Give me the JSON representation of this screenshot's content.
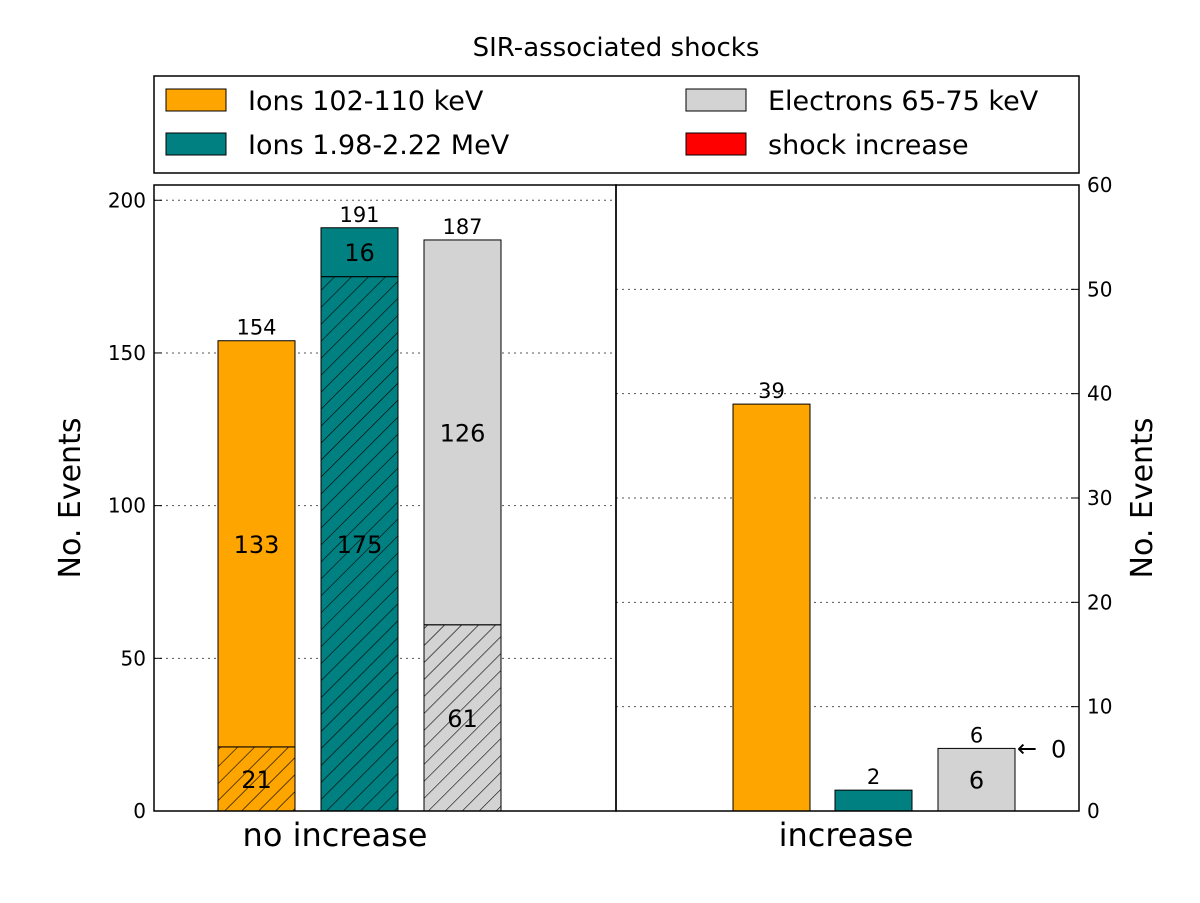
{
  "chart_data": {
    "type": "bar",
    "title": "SIR-associated shocks",
    "legend": {
      "placement": "top",
      "entries": [
        {
          "label": "Ions 102-110 keV",
          "color": "#ffa500"
        },
        {
          "label": "Electrons 65-75 keV",
          "color": "#d3d3d3"
        },
        {
          "label": "Ions 1.98-2.22 MeV",
          "color": "#008080"
        },
        {
          "label": "shock increase",
          "color": "#ff0000"
        }
      ]
    },
    "panels": [
      {
        "category": "no increase",
        "axis": "left",
        "ylabel": "No. Events",
        "ylim": [
          0,
          205
        ],
        "yticks": [
          0,
          50,
          100,
          150,
          200
        ],
        "bars": [
          {
            "series": "Ions 102-110 keV",
            "color": "#ffa500",
            "total": 154,
            "total_label": "154",
            "segments": [
              {
                "value": 21,
                "label": "21",
                "hatched": true
              },
              {
                "value": 133,
                "label": "133",
                "hatched": false
              }
            ]
          },
          {
            "series": "Ions 1.98-2.22 MeV",
            "color": "#008080",
            "total": 191,
            "total_label": "191",
            "segments": [
              {
                "value": 175,
                "label": "175",
                "hatched": true
              },
              {
                "value": 16,
                "label": "16",
                "hatched": false
              }
            ]
          },
          {
            "series": "Electrons 65-75 keV",
            "color": "#d3d3d3",
            "total": 187,
            "total_label": "187",
            "segments": [
              {
                "value": 61,
                "label": "61",
                "hatched": true
              },
              {
                "value": 126,
                "label": "126",
                "hatched": false
              }
            ]
          }
        ]
      },
      {
        "category": "increase",
        "axis": "right",
        "ylabel": "No. Events",
        "ylim": [
          0,
          60
        ],
        "yticks": [
          0,
          10,
          20,
          30,
          40,
          50,
          60
        ],
        "bars": [
          {
            "series": "Ions 102-110 keV",
            "color": "#ffa500",
            "total": 39,
            "total_label": "39",
            "segments": [
              {
                "value": 39,
                "label": "",
                "hatched": false
              }
            ]
          },
          {
            "series": "Ions 1.98-2.22 MeV",
            "color": "#008080",
            "total": 2,
            "total_label": "2",
            "segments": [
              {
                "value": 2,
                "label": "",
                "hatched": false
              }
            ]
          },
          {
            "series": "Electrons 65-75 keV",
            "color": "#d3d3d3",
            "total": 6,
            "total_label": "6",
            "segments": [
              {
                "value": 6,
                "label": "6",
                "hatched": false
              }
            ]
          }
        ],
        "annotation": {
          "text": "0",
          "target_series": "Electrons 65-75 keV",
          "arrow": "←"
        }
      }
    ]
  }
}
